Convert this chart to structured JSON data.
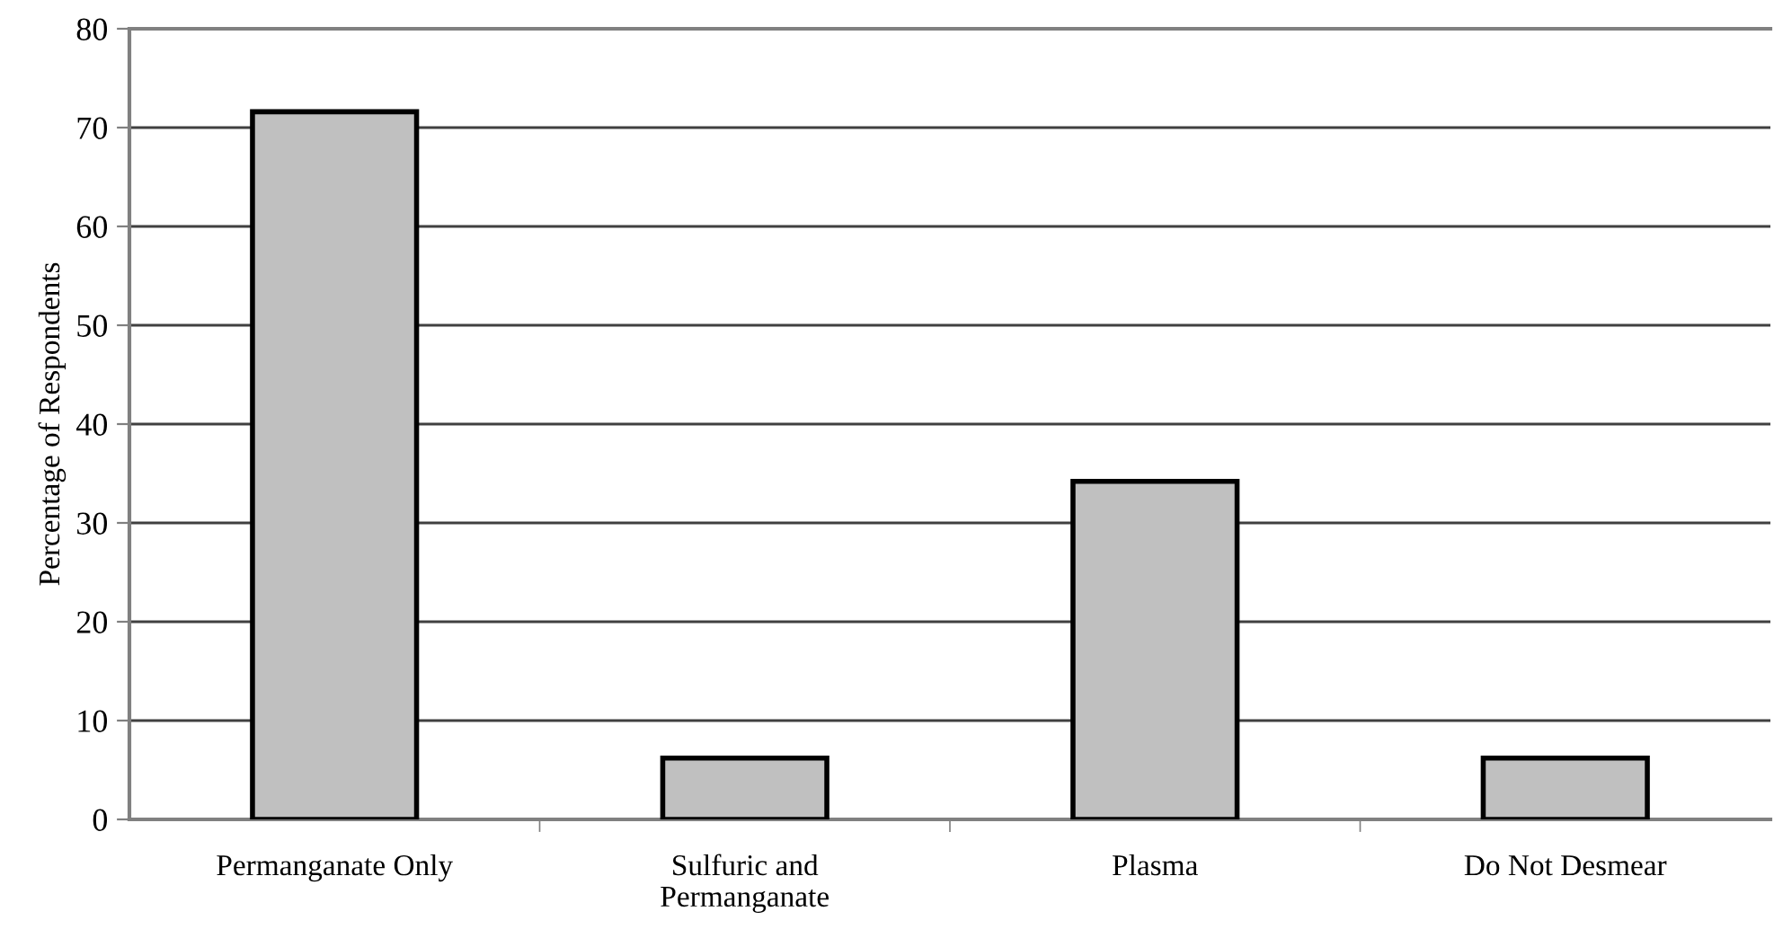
{
  "chart_data": {
    "type": "bar",
    "ylabel": "Percentage of Respondents",
    "categories": [
      "Permanganate Only",
      "Sulfuric and\nPermanganate",
      "Plasma",
      "Do Not Desmear"
    ],
    "values": [
      71.6,
      6.2,
      34.2,
      6.2
    ],
    "color": "#c0c0c0",
    "ylim": [
      0,
      80
    ],
    "yticks": [
      0,
      10,
      20,
      30,
      40,
      50,
      60,
      70,
      80
    ],
    "grid": "y"
  }
}
